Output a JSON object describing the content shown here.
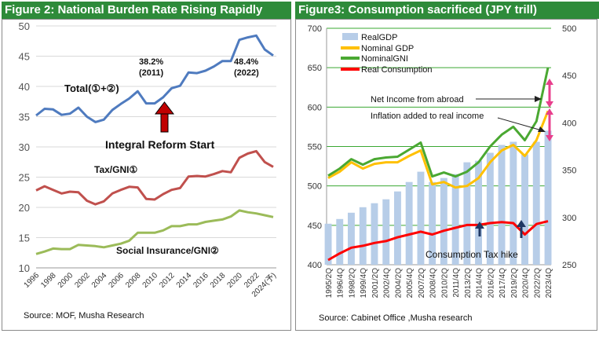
{
  "left": {
    "banner": "Figure 2: National Burden Rate Rising Rapidly",
    "source": "Source: MOF, Musha Research",
    "annotations": {
      "total": "Total(①+②)",
      "peak2011_pct": "38.2%",
      "peak2011_year": "(2011)",
      "peak2022_pct": "48.4%",
      "peak2022_year": "(2022)",
      "reform": "Integral Reform Start",
      "tax": "Tax/GNI①",
      "social": "Social Insurance/GNI②"
    },
    "colors": {
      "total": "#4f7bbf",
      "tax": "#c0504d",
      "social": "#9bbb59",
      "arrow": "#c00000"
    }
  },
  "right": {
    "banner": "Figure3: Consumption sacrificed (JPY trill)",
    "source": "Source: Cabinet Office ,Musha research",
    "legend": [
      "RealGDP",
      "Nominal GDP",
      "NominalGNI",
      "Real Consumption"
    ],
    "annotations": {
      "net_income": "Net Income from abroad",
      "inflation": "Inflation added to real income",
      "tax_hike": "Consumption Tax hike"
    },
    "colors": {
      "real_gdp": "#b7cde8",
      "nominal_gdp": "#ffc000",
      "nominal_gni": "#4aa832",
      "real_consumption": "#ff0000",
      "arrow": "#e83e8c"
    }
  },
  "chart_data": [
    {
      "type": "line",
      "title": "Figure 2: National Burden Rate Rising Rapidly",
      "x": [
        1996,
        1997,
        1998,
        1999,
        2000,
        2001,
        2002,
        2003,
        2004,
        2005,
        2006,
        2007,
        2008,
        2009,
        2010,
        2011,
        2012,
        2013,
        2014,
        2015,
        2016,
        2017,
        2018,
        2019,
        2020,
        2021,
        2022,
        2023,
        2024
      ],
      "x_tick_labels": [
        "1996",
        "1998",
        "2000",
        "2002",
        "2004",
        "2006",
        "2008",
        "2010",
        "2012",
        "2014",
        "2016",
        "2018",
        "2020",
        "2022",
        "2024(予)"
      ],
      "ylim": [
        10,
        50
      ],
      "y_ticks": [
        10,
        15,
        20,
        25,
        30,
        35,
        40,
        45,
        50
      ],
      "grid": true,
      "series": [
        {
          "name": "Total(①+②)",
          "values": [
            35.2,
            36.3,
            36.2,
            35.3,
            35.5,
            36.5,
            35.0,
            34.1,
            34.5,
            36.1,
            37.1,
            38.0,
            39.2,
            37.2,
            37.2,
            38.2,
            39.7,
            40.1,
            42.3,
            42.2,
            42.6,
            43.3,
            44.2,
            44.2,
            47.7,
            48.1,
            48.4,
            46.1,
            45.1
          ]
        },
        {
          "name": "Tax/GNI①",
          "values": [
            22.8,
            23.5,
            22.9,
            22.3,
            22.6,
            22.5,
            21.1,
            20.5,
            21.0,
            22.3,
            22.9,
            23.4,
            23.3,
            21.4,
            21.3,
            22.2,
            22.9,
            23.2,
            25.1,
            25.2,
            25.1,
            25.5,
            26.0,
            25.8,
            28.2,
            28.9,
            29.3,
            27.5,
            26.7
          ]
        },
        {
          "name": "Social Insurance/GNI②",
          "values": [
            12.3,
            12.7,
            13.2,
            13.1,
            13.1,
            13.8,
            13.7,
            13.6,
            13.4,
            13.7,
            14.0,
            14.5,
            15.8,
            15.8,
            15.8,
            16.2,
            16.9,
            16.9,
            17.2,
            17.2,
            17.6,
            17.8,
            18.0,
            18.5,
            19.5,
            19.2,
            19.0,
            18.7,
            18.4
          ]
        }
      ]
    },
    {
      "type": "bar+line",
      "title": "Figure3: Consumption sacrificed (JPY trill)",
      "x": [
        "1995/2Q",
        "1996/4Q",
        "1998/2Q",
        "1999/4Q",
        "2001/2Q",
        "2002/4Q",
        "2004/2Q",
        "2005/4Q",
        "2007/2Q",
        "2008/4Q",
        "2010/2Q",
        "2011/4Q",
        "2013/2Q",
        "2014/4Q",
        "2016/2Q",
        "2017/4Q",
        "2019/2Q",
        "2020/4Q",
        "2022/2Q",
        "2023/4Q"
      ],
      "x_tick_labels": [
        "1995/2Q",
        "1996/4Q",
        "1998/2Q",
        "1999/4Q",
        "2001/2Q",
        "2002/4Q",
        "2004/2Q",
        "2005/4Q",
        "2007/2Q",
        "2008/4Q",
        "2010/2Q",
        "2011/4Q",
        "2013/2Q",
        "2014/4Q",
        "2016/2Q",
        "2017/4Q",
        "2019/2Q",
        "2020/4Q",
        "2022/2Q",
        "2023/4Q"
      ],
      "y_left_lim": [
        400,
        700
      ],
      "y_left_ticks": [
        400,
        450,
        500,
        550,
        600,
        650,
        700
      ],
      "y_right_lim": [
        250,
        500
      ],
      "y_right_ticks": [
        250,
        300,
        350,
        400,
        450,
        500
      ],
      "grid": true,
      "series": [
        {
          "name": "RealGDP",
          "axis": "left",
          "values": [
            452,
            458,
            466,
            473,
            478,
            483,
            493,
            505,
            518,
            505,
            510,
            515,
            530,
            532,
            542,
            552,
            556,
            540,
            556,
            570
          ]
        },
        {
          "name": "Nominal GDP",
          "axis": "left",
          "values": [
            510,
            518,
            530,
            522,
            528,
            530,
            530,
            538,
            545,
            502,
            505,
            498,
            500,
            510,
            530,
            545,
            552,
            538,
            558,
            595
          ]
        },
        {
          "name": "NominalGNI",
          "axis": "left",
          "values": [
            513,
            522,
            534,
            527,
            534,
            536,
            537,
            546,
            555,
            512,
            517,
            512,
            518,
            530,
            550,
            565,
            575,
            558,
            582,
            650
          ]
        },
        {
          "name": "Real Consumption",
          "axis": "right",
          "values": [
            255,
            262,
            268,
            270,
            273,
            275,
            279,
            282,
            285,
            282,
            286,
            289,
            292,
            292,
            294,
            295,
            294,
            282,
            293,
            296
          ]
        }
      ]
    }
  ]
}
